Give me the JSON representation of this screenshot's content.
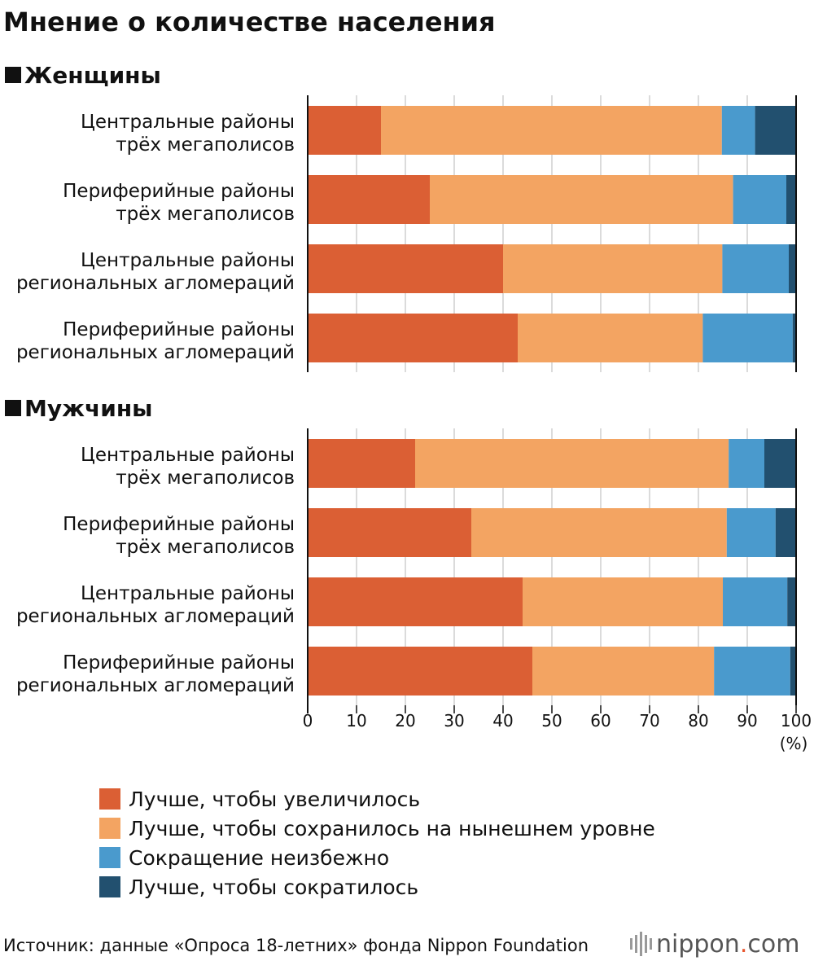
{
  "title": "Мнение о количестве населения",
  "source": "Источник: данные «Опроса 18-летних» фонда Nippon Foundation",
  "brand": {
    "name": "nippon",
    "dot": ".",
    "suffix": "com",
    "dot_color": "#e8542c"
  },
  "unit_label": "(%)",
  "chart_data": {
    "type": "bar",
    "orientation": "horizontal",
    "stacked": true,
    "xlim": [
      0,
      100
    ],
    "xticks": [
      0,
      10,
      20,
      30,
      40,
      50,
      60,
      70,
      80,
      90,
      100
    ],
    "grid": true,
    "legend_position": "bottom",
    "series_names": [
      "Лучше, чтобы увеличилось",
      "Лучше, чтобы сохранилось на нынешнем уровне",
      "Сокращение неизбежно",
      "Лучше, чтобы сократилось"
    ],
    "colors": [
      "#db5f34",
      "#f3a462",
      "#4a9acd",
      "#22506f"
    ],
    "groups": [
      {
        "name": "Женщины",
        "categories": [
          [
            "Центральные районы",
            "трёх мегаполисов"
          ],
          [
            "Периферийные районы",
            "трёх мегаполисов"
          ],
          [
            "Центральные районы",
            "региональных агломераций"
          ],
          [
            "Периферийные районы",
            "региональных агломераций"
          ]
        ],
        "values": [
          [
            15.0,
            69.8,
            6.8,
            8.4
          ],
          [
            25.0,
            62.1,
            10.9,
            2.0
          ],
          [
            40.0,
            44.9,
            13.6,
            1.5
          ],
          [
            43.0,
            37.9,
            18.4,
            0.7
          ]
        ]
      },
      {
        "name": "Мужчины",
        "categories": [
          [
            "Центральные районы",
            "трёх мегаполисов"
          ],
          [
            "Периферийные районы",
            "трёх мегаполисов"
          ],
          [
            "Центральные районы",
            "региональных агломераций"
          ],
          [
            "Периферийные районы",
            "региональных агломераций"
          ]
        ],
        "values": [
          [
            22.0,
            64.2,
            7.3,
            6.5
          ],
          [
            33.5,
            52.3,
            10.0,
            4.2
          ],
          [
            44.0,
            41.0,
            13.2,
            1.8
          ],
          [
            46.0,
            37.2,
            15.6,
            1.2
          ]
        ]
      }
    ]
  }
}
